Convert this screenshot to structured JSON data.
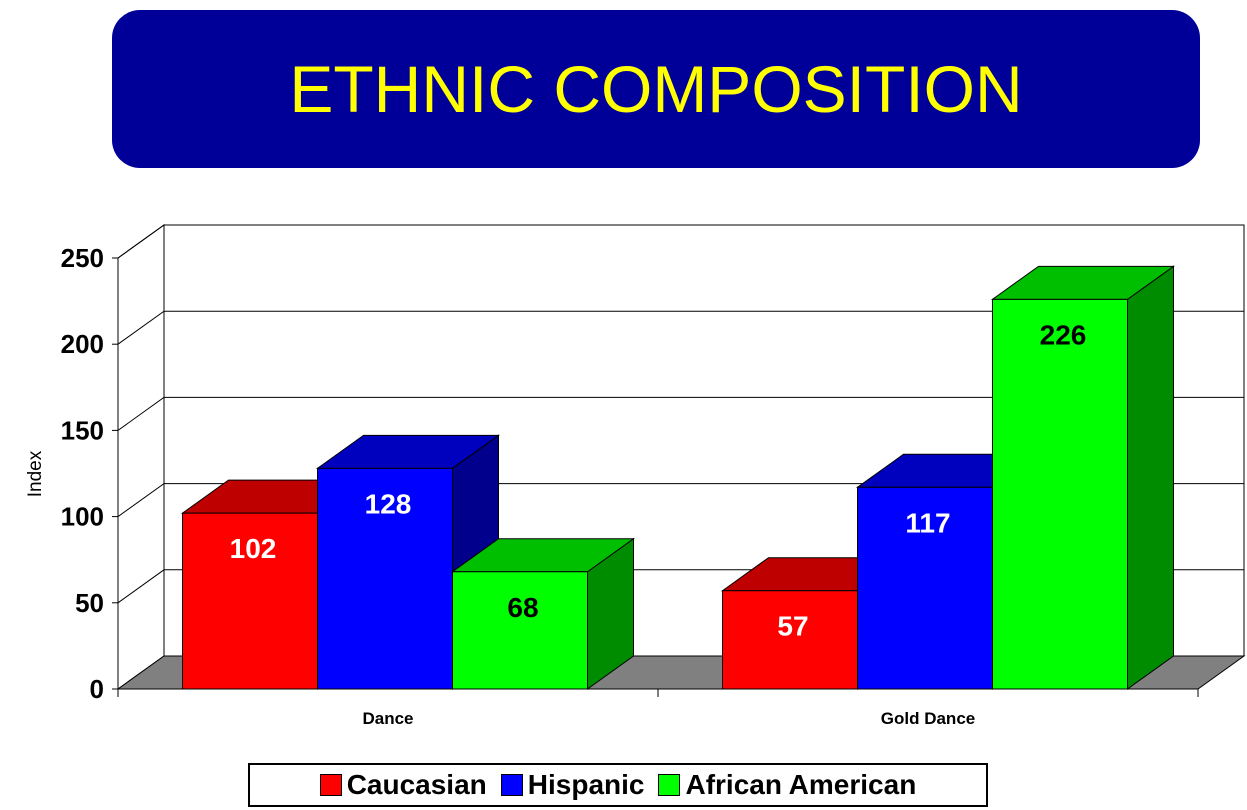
{
  "title": "ETHNIC COMPOSITION",
  "colors": {
    "title_bg": "#000099",
    "title_text": "#ffff00",
    "floor": "#808080"
  },
  "chart_data": {
    "type": "bar",
    "title": "ETHNIC COMPOSITION",
    "xlabel": "",
    "ylabel": "Index",
    "ylim": [
      0,
      250
    ],
    "yticks": [
      "0",
      "50",
      "100",
      "150",
      "200",
      "250"
    ],
    "categories": [
      "Dance",
      "Gold Dance"
    ],
    "grid": true,
    "legend_position": "bottom",
    "series": [
      {
        "name": "Caucasian",
        "values": [
          102,
          57
        ],
        "color": "#ff0000",
        "label_color": "#ffffff"
      },
      {
        "name": "Hispanic",
        "values": [
          128,
          117
        ],
        "color": "#0000ff",
        "label_color": "#ffffff"
      },
      {
        "name": "African American",
        "values": [
          68,
          226
        ],
        "color": "#00ff00",
        "label_color": "#000000"
      }
    ]
  }
}
